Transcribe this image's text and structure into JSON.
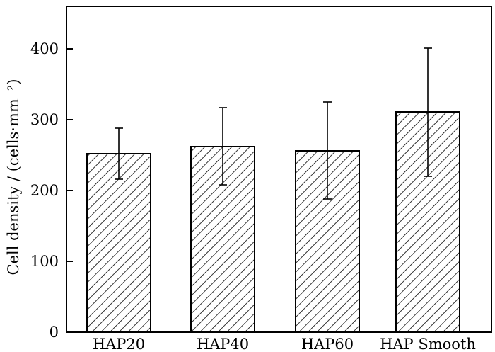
{
  "chart_data": {
    "type": "bar",
    "categories": [
      "HAP20",
      "HAP40",
      "HAP60",
      "HAP Smooth"
    ],
    "values": [
      252,
      262,
      256,
      311
    ],
    "error_low": [
      216,
      208,
      188,
      220
    ],
    "error_high": [
      288,
      317,
      325,
      401
    ],
    "xlabel": "",
    "ylabel": "Cell density / (cells·mm⁻²)",
    "ylim": [
      0,
      460
    ],
    "yticks": [
      0,
      100,
      200,
      300,
      400
    ],
    "ytick_labels": [
      "0",
      "100",
      "200",
      "300",
      "400"
    ],
    "grid": false,
    "bar_fill": "diagonal hatch",
    "colors": {
      "bar_edge": "#000000",
      "hatch": "#000000",
      "background": "#ffffff"
    }
  }
}
